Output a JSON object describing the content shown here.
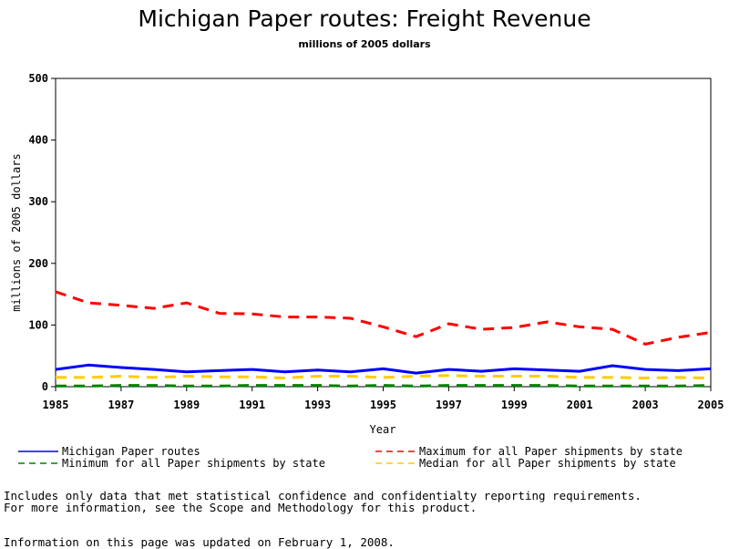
{
  "chart_data": {
    "type": "line",
    "title": "Michigan Paper routes: Freight Revenue",
    "subtitle": "millions of 2005 dollars",
    "xlabel": "Year",
    "ylabel": "millions of 2005 dollars",
    "ylim": [
      0,
      500
    ],
    "xlim": [
      1985,
      2005
    ],
    "yticks": [
      0,
      100,
      200,
      300,
      400,
      500
    ],
    "xticks": [
      1985,
      1987,
      1989,
      1991,
      1993,
      1995,
      1997,
      1999,
      2001,
      2003,
      2005
    ],
    "x": [
      1985,
      1986,
      1987,
      1988,
      1989,
      1990,
      1991,
      1992,
      1993,
      1994,
      1995,
      1996,
      1997,
      1998,
      1999,
      2000,
      2001,
      2002,
      2003,
      2004,
      2005
    ],
    "grid": false,
    "legend_position": "bottom",
    "series": [
      {
        "name": "Michigan Paper routes",
        "color": "#0000ff",
        "style": "solid",
        "values": [
          28,
          35,
          31,
          28,
          24,
          26,
          28,
          24,
          27,
          24,
          29,
          22,
          28,
          25,
          29,
          27,
          25,
          34,
          28,
          26,
          29
        ]
      },
      {
        "name": "Maximum for all Paper shipments by state",
        "color": "#ff0000",
        "style": "dashed",
        "values": [
          154,
          136,
          132,
          127,
          136,
          119,
          118,
          113,
          113,
          111,
          97,
          81,
          102,
          93,
          96,
          105,
          97,
          93,
          69,
          80,
          88
        ]
      },
      {
        "name": "Minimum for all Paper shipments by state",
        "color": "#008000",
        "style": "dashed",
        "values": [
          1,
          1,
          2,
          2,
          1,
          1,
          2,
          2,
          2,
          1,
          2,
          1,
          2,
          2,
          2,
          2,
          1,
          1,
          1,
          1,
          2
        ]
      },
      {
        "name": "Median for all Paper shipments by state",
        "color": "#ffcc00",
        "style": "dashed",
        "values": [
          15,
          15,
          17,
          15,
          17,
          16,
          16,
          14,
          17,
          17,
          15,
          17,
          18,
          17,
          17,
          17,
          15,
          15,
          14,
          15,
          14
        ]
      }
    ]
  },
  "notes": {
    "line1": "Includes only data that met statistical confidence and confidentialty reporting requirements.",
    "line2": "For more information, see the Scope and Methodology for this product.",
    "updated": "Information on this page was updated on February 1, 2008."
  }
}
